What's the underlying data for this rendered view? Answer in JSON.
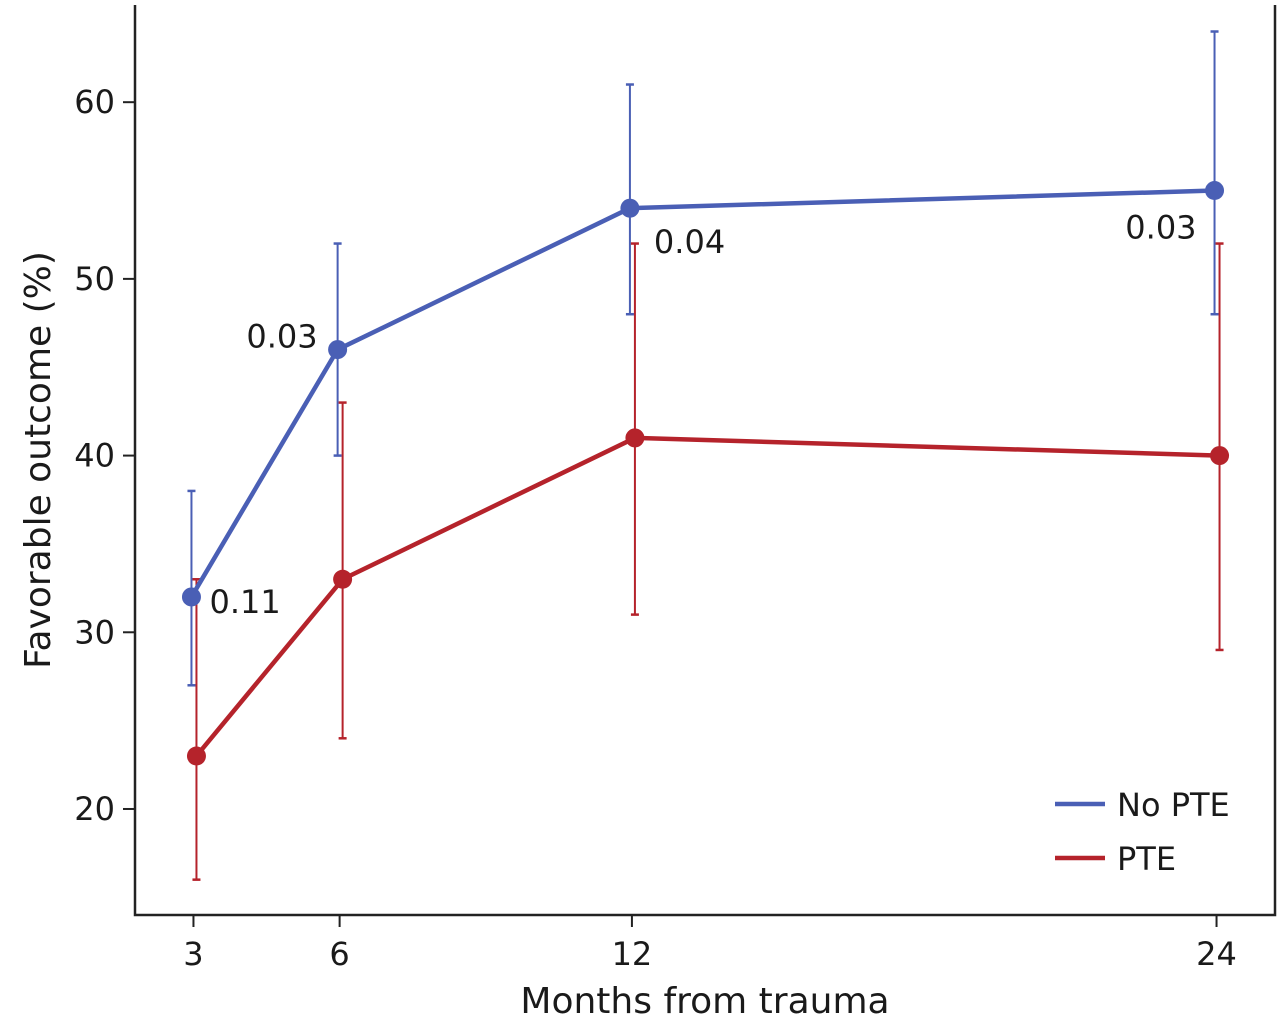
{
  "chart_data": {
    "type": "line",
    "title": "",
    "xlabel": "Months from trauma",
    "ylabel": "Favorable outcome (%)",
    "x": [
      3,
      6,
      12,
      24
    ],
    "x_tick_labels": [
      "3",
      "6",
      "12",
      "24"
    ],
    "y_ticks": [
      20,
      30,
      40,
      50,
      60
    ],
    "y_tick_labels": [
      "20",
      "30",
      "40",
      "50",
      "60"
    ],
    "xlim": [
      1.8,
      25.2
    ],
    "ylim": [
      14,
      65.5
    ],
    "grid": false,
    "legend_position": "bottom-right",
    "series": [
      {
        "name": "No PTE",
        "color": "#4a5fb5",
        "values": [
          32,
          46,
          54,
          55
        ],
        "error_low": [
          27,
          40,
          48,
          48
        ],
        "error_high": [
          38,
          52,
          61,
          64
        ]
      },
      {
        "name": "PTE",
        "color": "#b5232b",
        "values": [
          23,
          33,
          41,
          40
        ],
        "error_low": [
          16,
          24,
          31,
          29
        ],
        "error_high": [
          33,
          43,
          52,
          52
        ]
      }
    ],
    "annotations": [
      {
        "text": "0.11",
        "x": 3,
        "y": 32
      },
      {
        "text": "0.03",
        "x": 6,
        "y": 46
      },
      {
        "text": "0.04",
        "x": 12,
        "y": 54
      },
      {
        "text": "0.03",
        "x": 24,
        "y": 55
      }
    ]
  }
}
